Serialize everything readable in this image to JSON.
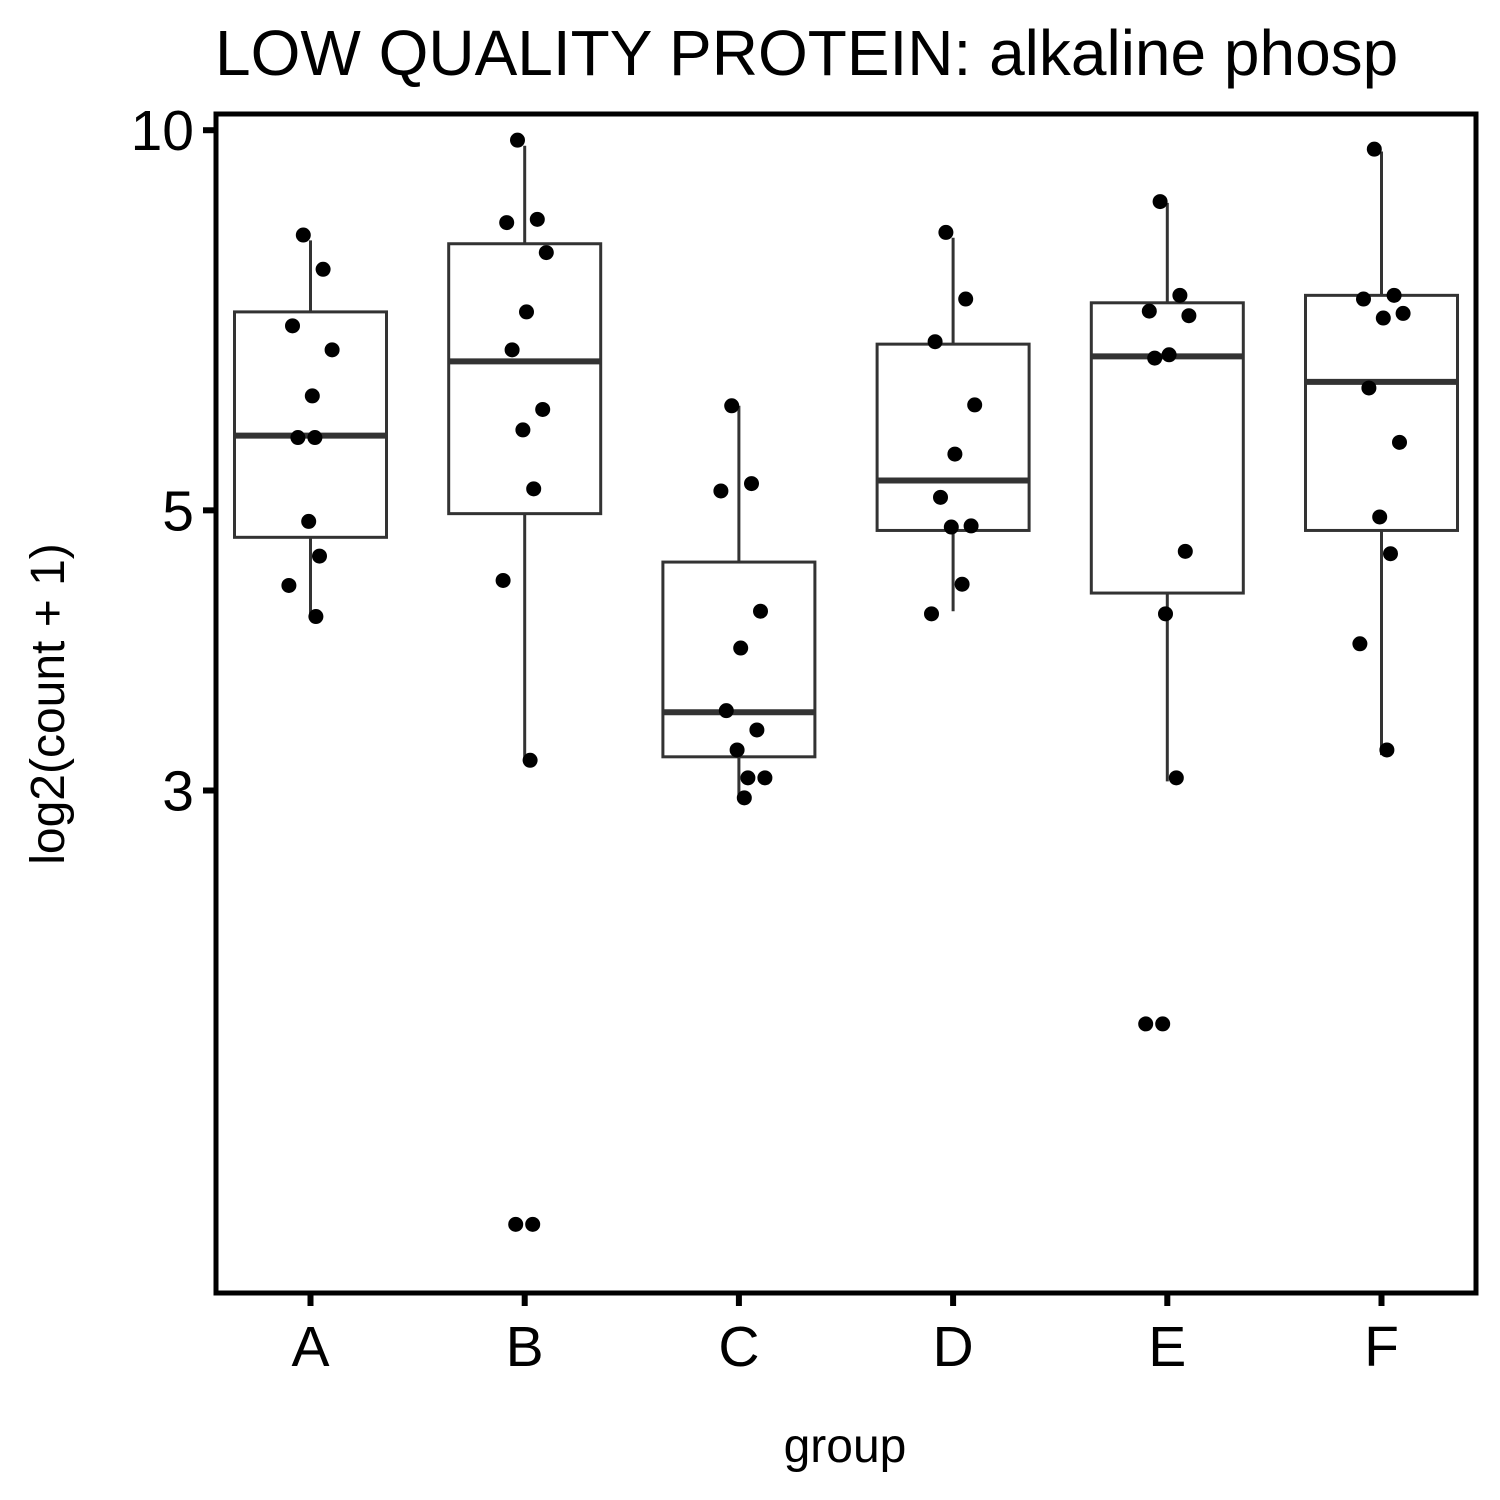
{
  "chart_data": {
    "type": "box",
    "title": "LOW QUALITY PROTEIN: alkaline phosp",
    "xlabel": "group",
    "ylabel": "log2(count + 1)",
    "y_scale": "log",
    "ylim": [
      1.2,
      10.3
    ],
    "y_ticks": [
      3,
      5,
      10
    ],
    "grid": false,
    "categories": [
      "A",
      "B",
      "C",
      "D",
      "E",
      "F"
    ],
    "boxes": [
      {
        "group": "A",
        "lower_whisker": 4.14,
        "q1": 4.76,
        "median": 5.73,
        "q3": 7.18,
        "upper_whisker": 8.18
      },
      {
        "group": "B",
        "lower_whisker": 3.16,
        "q1": 4.97,
        "median": 6.56,
        "q3": 8.13,
        "upper_whisker": 9.72
      },
      {
        "group": "C",
        "lower_whisker": 2.95,
        "q1": 3.19,
        "median": 3.46,
        "q3": 4.55,
        "upper_whisker": 6.05
      },
      {
        "group": "D",
        "lower_whisker": 4.16,
        "q1": 4.82,
        "median": 5.28,
        "q3": 6.77,
        "upper_whisker": 8.22
      },
      {
        "group": "E",
        "lower_whisker": 3.05,
        "q1": 4.3,
        "median": 6.62,
        "q3": 7.3,
        "upper_whisker": 8.76
      },
      {
        "group": "F",
        "lower_whisker": 3.2,
        "q1": 4.82,
        "median": 6.32,
        "q3": 7.4,
        "upper_whisker": 9.62
      }
    ],
    "points": {
      "A": [
        8.26,
        7.76,
        7.0,
        6.7,
        6.16,
        5.71,
        5.71,
        4.9,
        4.6,
        4.36,
        4.12
      ],
      "B": [
        9.82,
        8.5,
        8.45,
        8.0,
        7.18,
        6.7,
        6.01,
        5.79,
        5.2,
        4.4,
        3.17,
        1.36,
        1.36
      ],
      "C": [
        6.05,
        5.25,
        5.18,
        4.16,
        3.89,
        3.47,
        3.35,
        3.23,
        3.07,
        3.07,
        2.96
      ],
      "D": [
        8.3,
        7.35,
        6.8,
        6.06,
        5.54,
        5.12,
        4.86,
        4.85,
        4.37,
        4.14
      ],
      "E": [
        8.78,
        7.4,
        7.19,
        7.13,
        6.64,
        6.6,
        4.64,
        4.14,
        3.07,
        1.96,
        1.96
      ],
      "F": [
        9.66,
        7.4,
        7.35,
        7.16,
        7.1,
        6.25,
        5.66,
        4.94,
        4.62,
        3.92,
        3.23
      ]
    }
  }
}
